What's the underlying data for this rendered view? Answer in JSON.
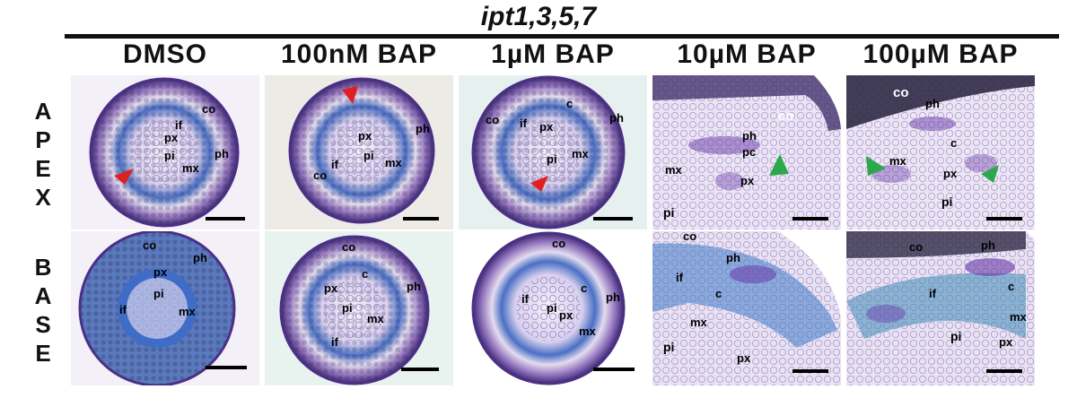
{
  "figure": {
    "title": "ipt1,3,5,7",
    "columns": [
      "DMSO",
      "100nM BAP",
      "1µM BAP",
      "10µM BAP",
      "100µM BAP"
    ],
    "rows": [
      {
        "name": "apex",
        "letters": [
          "A",
          "P",
          "E",
          "X"
        ]
      },
      {
        "name": "base",
        "letters": [
          "B",
          "A",
          "S",
          "E"
        ]
      }
    ]
  },
  "labels": {
    "co": "co",
    "ph": "ph",
    "px": "px",
    "pi": "pi",
    "mx": "mx",
    "if": "if",
    "c": "c",
    "pc": "pc"
  },
  "colors": {
    "stain_purple": "#6a3aa8",
    "stain_blue": "#2e5fb8",
    "arrow_red": "#e02020",
    "arrow_green": "#2aa84a",
    "background_tissue": "#e9e2f2"
  }
}
